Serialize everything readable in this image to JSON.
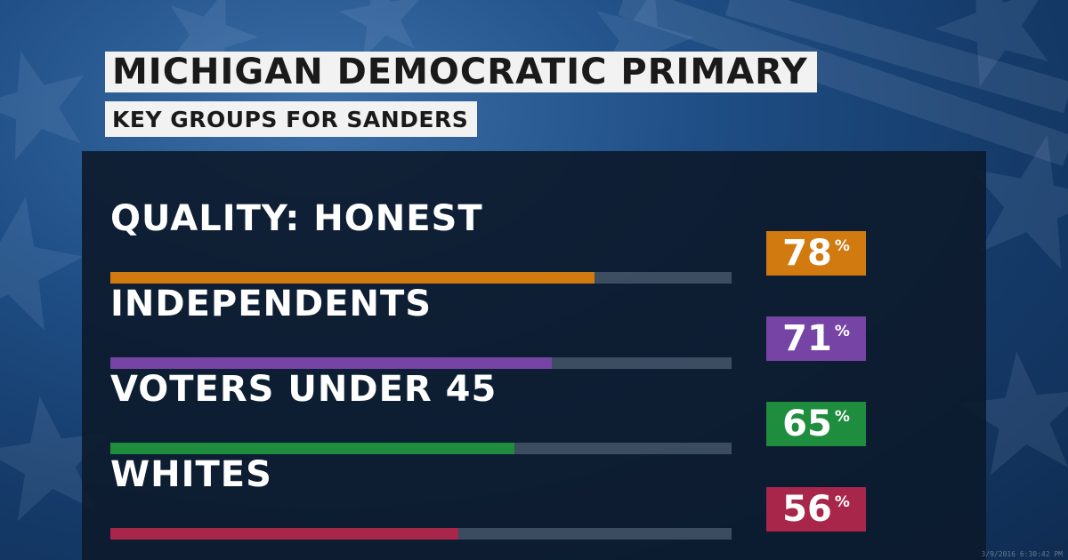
{
  "chart_data": {
    "type": "bar",
    "title": "MICHIGAN DEMOCRATIC PRIMARY",
    "subtitle": "KEY GROUPS FOR SANDERS",
    "categories": [
      "QUALITY: HONEST",
      "INDEPENDENTS",
      "VOTERS UNDER 45",
      "WHITES"
    ],
    "values": [
      78,
      71,
      65,
      56
    ],
    "value_suffix": "%",
    "colors": [
      "#d07a10",
      "#7544a5",
      "#1f8d3e",
      "#a8264a"
    ],
    "xlim": [
      0,
      100
    ],
    "orientation": "horizontal",
    "grid": false
  },
  "colors": {
    "track": "#5a6a7d",
    "panel": "#0c1a2b",
    "title_bg": "#f2f2f2"
  },
  "footer": {
    "timestamp": "3/9/2016 6:30:42 PM"
  }
}
